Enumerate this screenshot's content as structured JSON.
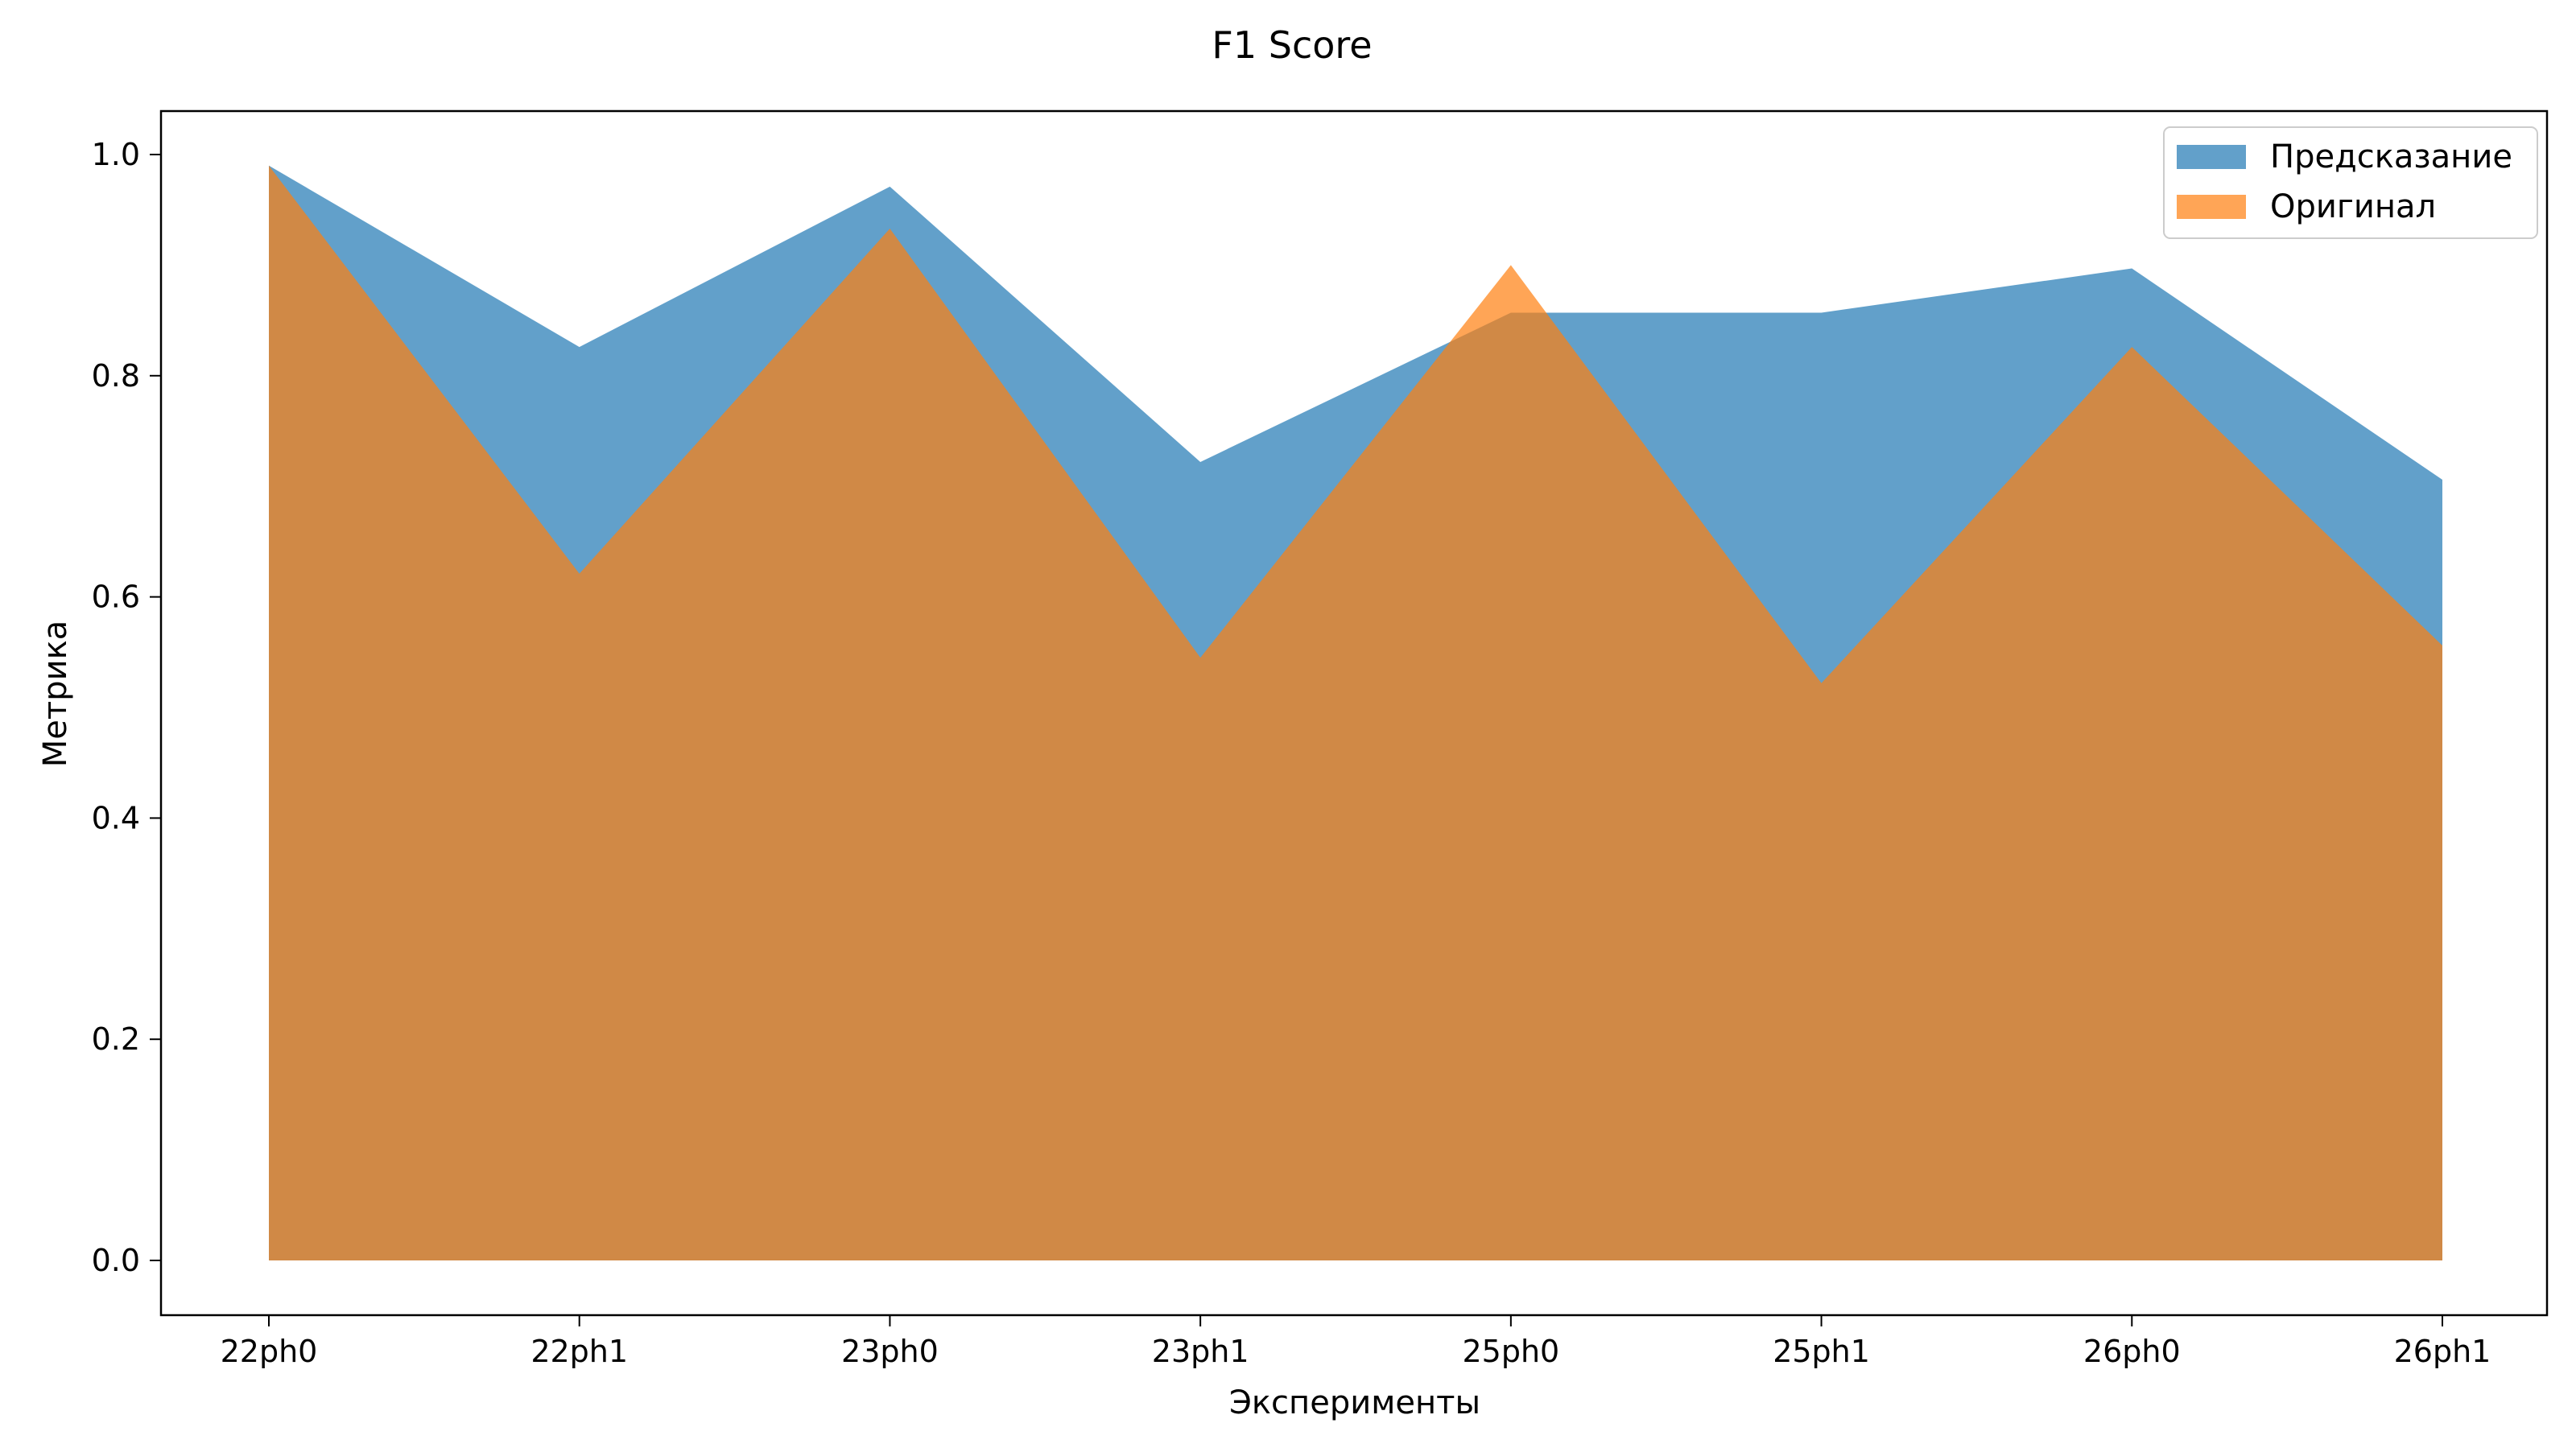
{
  "chart_data": {
    "type": "area",
    "title": "F1 Score",
    "xlabel": "Эксперименты",
    "ylabel": "Метрика",
    "categories": [
      "22ph0",
      "22ph1",
      "23ph0",
      "23ph1",
      "25ph0",
      "25ph1",
      "26ph0",
      "26ph1"
    ],
    "series": [
      {
        "name": "Предсказание",
        "color": "#1f77b4",
        "opacity": 0.7,
        "values": [
          0.99,
          0.826,
          0.971,
          0.722,
          0.857,
          0.857,
          0.897,
          0.706
        ]
      },
      {
        "name": "Оригинал",
        "color": "#ff7f0e",
        "opacity": 0.7,
        "values": [
          0.99,
          0.621,
          0.933,
          0.545,
          0.9,
          0.522,
          0.826,
          0.556
        ]
      }
    ],
    "ylim": [
      -0.05,
      1.04
    ],
    "yticks": [
      "0.0",
      "0.2",
      "0.4",
      "0.6",
      "0.8",
      "1.0"
    ],
    "grid": false,
    "legend": "upper right"
  }
}
